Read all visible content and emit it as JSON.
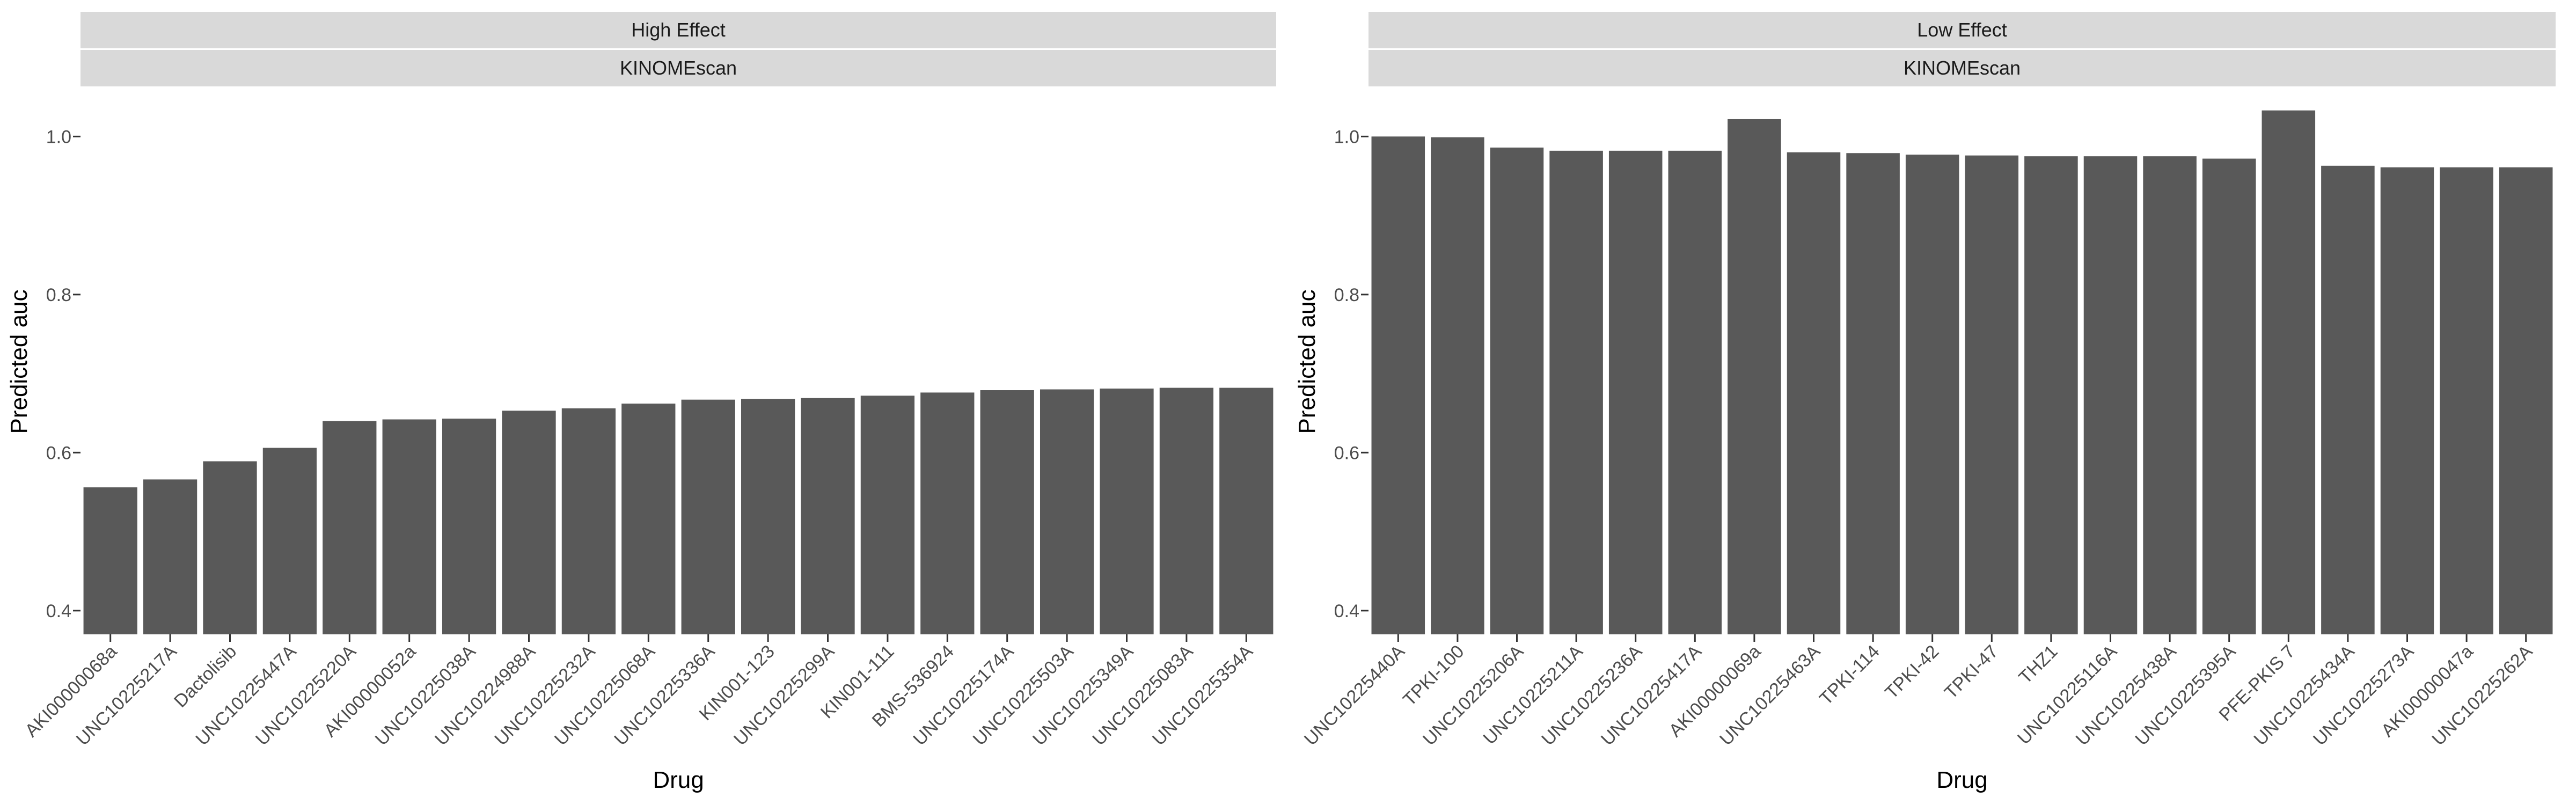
{
  "chart_data": [
    {
      "type": "bar",
      "facet_labels": [
        "High Effect",
        "KINOMEscan"
      ],
      "xlabel": "Drug",
      "ylabel": "Predicted auc",
      "ylim": [
        0.37,
        1.06
      ],
      "yticks": [
        0.4,
        0.6,
        0.8,
        1.0
      ],
      "ytick_labels": [
        "0.4",
        "0.6",
        "0.8",
        "1.0"
      ],
      "grid": false,
      "bar_color": "#595959",
      "categories": [
        "AKI00000068a",
        "UNC10225217A",
        "Dactolisib",
        "UNC10225447A",
        "UNC10225220A",
        "AKI00000052a",
        "UNC10225038A",
        "UNC10224988A",
        "UNC10225232A",
        "UNC10225068A",
        "UNC10225336A",
        "KIN001-123",
        "UNC10225299A",
        "KIN001-111",
        "BMS-536924",
        "UNC10225174A",
        "UNC10225503A",
        "UNC10225349A",
        "UNC10225083A",
        "UNC10225354A"
      ],
      "values": [
        0.556,
        0.566,
        0.589,
        0.606,
        0.64,
        0.642,
        0.643,
        0.653,
        0.656,
        0.662,
        0.667,
        0.668,
        0.669,
        0.672,
        0.676,
        0.679,
        0.68,
        0.681,
        0.682,
        0.682
      ]
    },
    {
      "type": "bar",
      "facet_labels": [
        "Low Effect",
        "KINOMEscan"
      ],
      "xlabel": "Drug",
      "ylabel": "Predicted auc",
      "ylim": [
        0.37,
        1.06
      ],
      "yticks": [
        0.4,
        0.6,
        0.8,
        1.0
      ],
      "ytick_labels": [
        "0.4",
        "0.6",
        "0.8",
        "1.0"
      ],
      "grid": false,
      "bar_color": "#595959",
      "categories": [
        "UNC10225440A",
        "TPKI-100",
        "UNC10225206A",
        "UNC10225211A",
        "UNC10225236A",
        "UNC10225417A",
        "AKI00000069a",
        "UNC10225463A",
        "TPKI-114",
        "TPKI-42",
        "TPKI-47",
        "THZ1",
        "UNC10225116A",
        "UNC10225438A",
        "UNC10225395A",
        "PFE-PKIS 7",
        "UNC10225434A",
        "UNC10225273A",
        "AKI00000047a",
        "UNC10225262A"
      ],
      "values": [
        1.0,
        0.999,
        0.986,
        0.982,
        0.982,
        0.982,
        1.022,
        0.98,
        0.979,
        0.977,
        0.976,
        0.975,
        0.975,
        0.975,
        0.972,
        1.033,
        0.963,
        0.961,
        0.961,
        0.961
      ]
    }
  ]
}
